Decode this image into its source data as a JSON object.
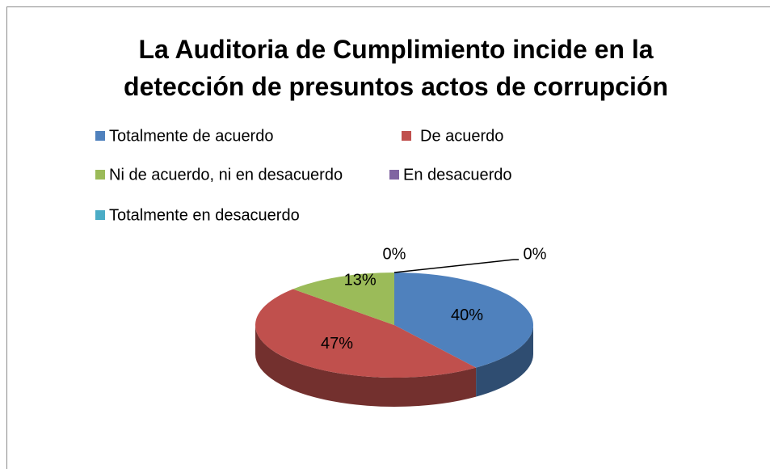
{
  "chart_data": {
    "type": "pie",
    "title": "La Auditoria de Cumplimiento incide en la detección de presuntos actos de corrupción",
    "categories": [
      "Totalmente de acuerdo",
      "De acuerdo",
      "Ni de acuerdo, ni en desacuerdo",
      "En desacuerdo",
      "Totalmente en desacuerdo"
    ],
    "values": [
      40,
      47,
      13,
      0,
      0
    ],
    "value_labels": [
      "40%",
      "47%",
      "13%",
      "0%",
      "0%"
    ],
    "colors": [
      "#4f81bd",
      "#c0504d",
      "#9bbb59",
      "#8064a2",
      "#4bacc6"
    ],
    "legend": "top"
  }
}
